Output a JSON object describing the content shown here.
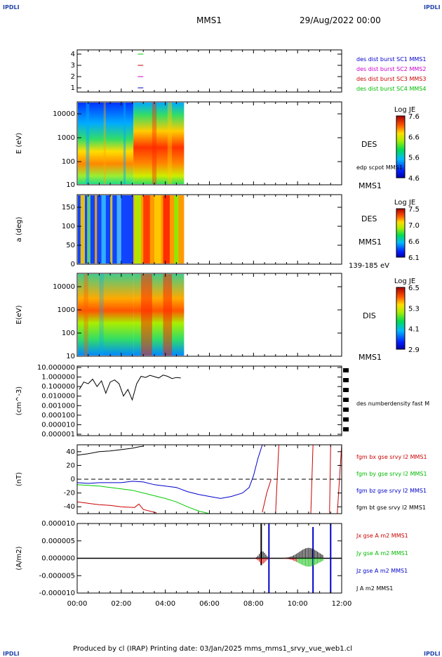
{
  "header": {
    "corner_left": "IPDLI",
    "corner_right": "IPDLI",
    "spacecraft": "MMS1",
    "datetime": "29/Aug/2022 00:00"
  },
  "footer": {
    "text": "Produced by cl (IRAP)   Printing date: 03/Jan/2025   mms_mms1_srvy_vue_web1.cl",
    "corner_left": "IPDLI",
    "corner_right": "IPDLI"
  },
  "time_axis": {
    "ticks": [
      "00:00",
      "02:00",
      "04:00",
      "06:00",
      "08:00",
      "10:00",
      "12:00"
    ]
  },
  "chart_data": [
    {
      "type": "line",
      "panel": "availability",
      "yticks": [
        "1",
        "2",
        "3",
        "4"
      ],
      "legend": [
        {
          "label": "des dist burst SC1 MMS1",
          "color": "#0000cc"
        },
        {
          "label": "des dist burst SC2 MMS2",
          "color": "#cc00cc"
        },
        {
          "label": "des dist burst SC3 MMS3",
          "color": "#cc0000"
        },
        {
          "label": "des dist burst SC4 MMS4",
          "color": "#00bb00"
        }
      ],
      "series": [
        {
          "sc": 4,
          "color": "#00cc00",
          "x": [
            2.75,
            3.0
          ]
        },
        {
          "sc": 3,
          "color": "#cc0000",
          "x": [
            2.75,
            3.0
          ]
        },
        {
          "sc": 2,
          "color": "#cc00cc",
          "x": [
            2.75,
            3.0
          ]
        },
        {
          "sc": 1,
          "color": "#0000cc",
          "x": [
            2.75,
            3.0
          ]
        }
      ]
    },
    {
      "type": "heatmap",
      "panel": "des-energy",
      "ylabel": "E (eV)",
      "yticks": [
        "10",
        "100",
        "1000",
        "10000"
      ],
      "labels": [
        "DES",
        "edp scpot MMS1",
        "MMS1"
      ],
      "colorbar": {
        "title": "Log JE",
        "ticks": [
          "7.6",
          "6.6",
          "5.6",
          "4.6"
        ]
      },
      "x_range_hours": [
        0,
        4.85
      ]
    },
    {
      "type": "heatmap",
      "panel": "des-pitch",
      "ylabel": "a (deg)",
      "yticks": [
        "0",
        "50",
        "100",
        "150"
      ],
      "labels": [
        "DES",
        "MMS1",
        "139-185 eV"
      ],
      "colorbar": {
        "title": "Log JE",
        "ticks": [
          "7.5",
          "7.0",
          "6.6",
          "6.1"
        ]
      },
      "x_range_hours": [
        0,
        4.85
      ]
    },
    {
      "type": "heatmap",
      "panel": "dis-energy",
      "ylabel": "E(eV)",
      "yticks": [
        "10",
        "100",
        "1000",
        "10000"
      ],
      "labels": [
        "DIS",
        "MMS1"
      ],
      "colorbar": {
        "title": "Log JE",
        "ticks": [
          "6.5",
          "5.3",
          "4.1",
          "2.9"
        ]
      },
      "x_range_hours": [
        0,
        4.85
      ]
    },
    {
      "type": "line",
      "panel": "density",
      "ylabel": "(cm^-3)",
      "yticks": [
        "10.000000",
        "1.000000",
        "0.100000",
        "0.010000",
        "0.001000",
        "0.000100",
        "0.000010",
        "0.000001"
      ],
      "legend": [
        {
          "label": "des numberdensity fast M",
          "color": "#000000"
        }
      ],
      "series": [
        {
          "name": "des numberdensity fast M",
          "color": "#000000",
          "x": [
            0.1,
            0.3,
            0.5,
            0.7,
            0.9,
            1.1,
            1.3,
            1.5,
            1.7,
            1.9,
            2.1,
            2.3,
            2.5,
            2.7,
            2.9,
            3.1,
            3.3,
            3.5,
            3.7,
            3.9,
            4.1,
            4.3,
            4.5,
            4.7
          ],
          "y": [
            0.05,
            0.3,
            0.2,
            0.6,
            0.1,
            0.4,
            0.02,
            0.3,
            0.5,
            0.2,
            0.01,
            0.05,
            0.004,
            0.2,
            1.2,
            0.9,
            1.5,
            1.1,
            0.8,
            1.6,
            1.2,
            0.7,
            0.9,
            0.8
          ]
        }
      ]
    },
    {
      "type": "line",
      "panel": "fgm",
      "ylabel": "(nT)",
      "yticks": [
        "40",
        "20",
        "0",
        "-20",
        "-40"
      ],
      "legend": [
        {
          "label": "fgm bx gse srvy l2 MMS1",
          "color": "#cc0000"
        },
        {
          "label": "fgm by gse srvy l2 MMS1",
          "color": "#00bb00"
        },
        {
          "label": "fgm bz gse srvy l2 MMS1",
          "color": "#0000cc"
        },
        {
          "label": "fgm bt gse srvy l2 MMS1",
          "color": "#000000"
        }
      ],
      "series": [
        {
          "name": "fgm bt",
          "color": "#000000",
          "x": [
            0,
            0.5,
            1,
            1.5,
            2,
            2.5,
            2.8,
            3.0
          ],
          "y": [
            35,
            37,
            40,
            41,
            43,
            45,
            47,
            48
          ]
        },
        {
          "name": "fgm bx",
          "color": "#cc0000",
          "x": [
            0,
            0.5,
            1,
            1.5,
            2,
            2.6,
            2.8,
            3.0,
            3.5,
            3.6
          ],
          "y": [
            -33,
            -35,
            -37,
            -38,
            -40,
            -41,
            -36,
            -44,
            -48,
            -49
          ]
        },
        {
          "name": "fgm by",
          "color": "#00cc00",
          "x": [
            0,
            0.5,
            1,
            1.5,
            2,
            2.5,
            3.0,
            3.5,
            4.0,
            4.5,
            5.0,
            5.5,
            6.0
          ],
          "y": [
            -8,
            -9,
            -10,
            -12,
            -14,
            -16,
            -20,
            -24,
            -28,
            -33,
            -40,
            -46,
            -50
          ]
        },
        {
          "name": "fgm bz",
          "color": "#0000cc",
          "x": [
            0,
            0.5,
            1,
            1.5,
            2,
            2.5,
            3.0,
            3.5,
            4.0,
            4.5,
            5.0,
            5.5,
            6.0,
            6.5,
            7.0,
            7.5,
            7.8,
            8.0,
            8.2,
            8.4
          ],
          "y": [
            -5,
            -6,
            -5,
            -5,
            -5,
            -3,
            -4,
            -8,
            -10,
            -12,
            -18,
            -22,
            -25,
            -28,
            -25,
            -20,
            -12,
            5,
            30,
            50
          ]
        },
        {
          "name": "fgm bx late",
          "color": "#cc0000",
          "x": [
            8.4,
            8.6,
            8.8
          ],
          "y": [
            -48,
            -20,
            0
          ]
        }
      ]
    },
    {
      "type": "line",
      "panel": "current",
      "ylabel": "(A/m2)",
      "yticks": [
        "0.000010",
        "0.000005",
        "0.000000",
        "-0.000005",
        "-0.000010"
      ],
      "legend": [
        {
          "label": "Jx gse A m2 MMS1",
          "color": "#cc0000"
        },
        {
          "label": "Jy gse A m2 MMS1",
          "color": "#00bb00"
        },
        {
          "label": "Jz gse A m2 MMS1",
          "color": "#0000cc"
        },
        {
          "label": "J A m2 MMS1",
          "color": "#000000"
        }
      ],
      "series": []
    }
  ]
}
